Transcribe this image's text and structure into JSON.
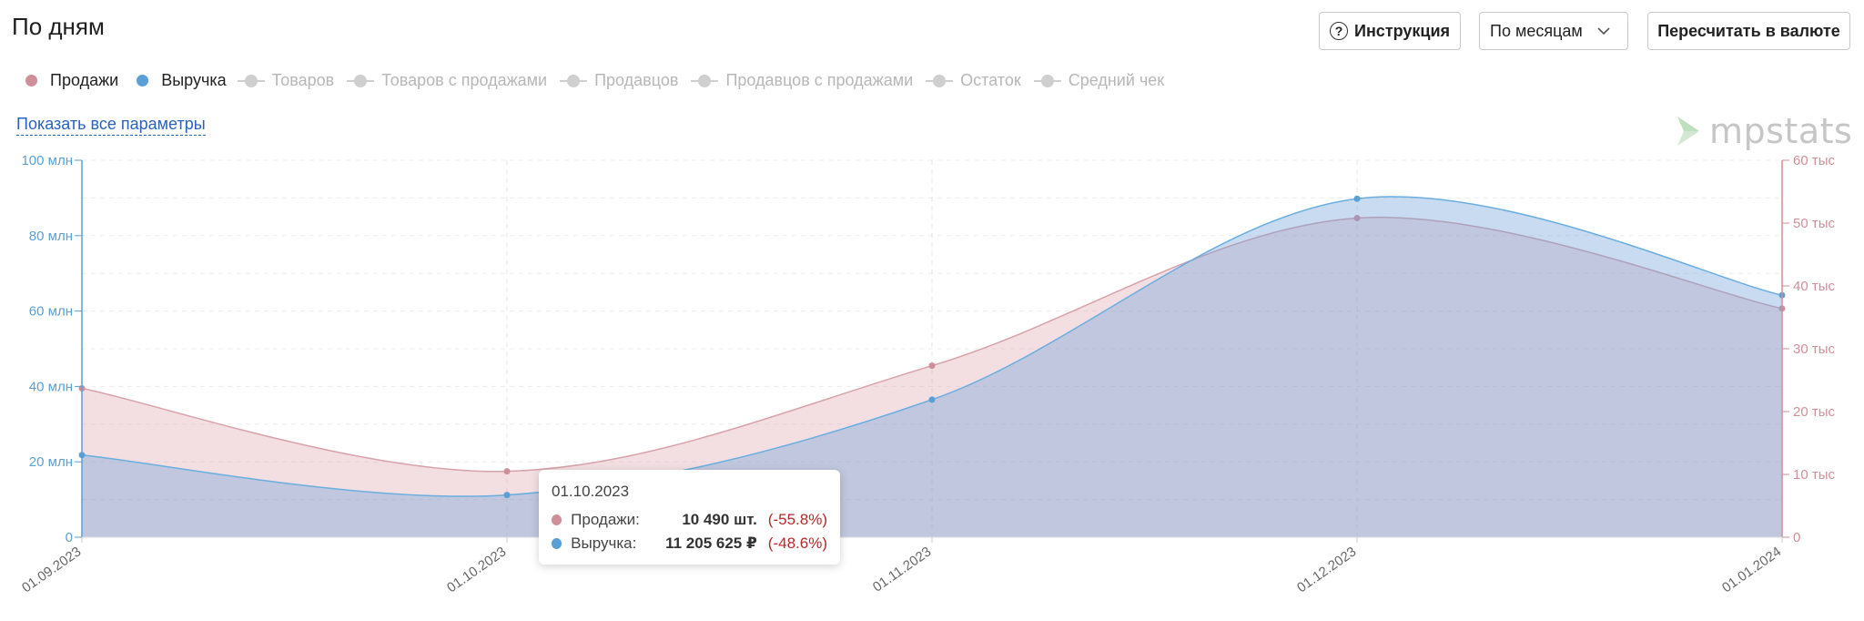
{
  "header": {
    "title": "По дням",
    "help_label": "Инструкция",
    "period_select": "По месяцам",
    "currency_label": "Пересчитать в валюте"
  },
  "legend": {
    "active": [
      {
        "label": "Продажи",
        "color": "#cf8f99"
      },
      {
        "label": "Выручка",
        "color": "#5aa0d6"
      }
    ],
    "inactive": [
      "Товаров",
      "Товаров с продажами",
      "Продавцов",
      "Продавцов с продажами",
      "Остаток",
      "Средний чек"
    ]
  },
  "show_all_link": "Показать все параметры",
  "logo": {
    "text": "mpstats",
    "icon": "mpstats-logo-icon"
  },
  "tooltip": {
    "date": "01.10.2023",
    "rows": [
      {
        "label": "Продажи:",
        "value": "10 490 шт.",
        "change": "(-55.8%)",
        "color": "#cf8f99"
      },
      {
        "label": "Выручка:",
        "value": "11 205 625 ₽",
        "change": "(-48.6%)",
        "color": "#5aa0d6"
      }
    ]
  },
  "chart_data": {
    "type": "area",
    "categories": [
      "01.09.2023",
      "01.10.2023",
      "01.11.2023",
      "01.12.2023",
      "01.01.2024"
    ],
    "series": [
      {
        "name": "Продажи",
        "axis": "right",
        "color": "#cf8f99",
        "values": [
          23700,
          10490,
          27300,
          50800,
          36400
        ]
      },
      {
        "name": "Выручка",
        "axis": "left",
        "color": "#5aa0d6",
        "values": [
          21800000,
          11205625,
          36500000,
          89800000,
          64200000
        ]
      }
    ],
    "y_left": {
      "min": 0,
      "max": 100000000,
      "ticks": [
        "0",
        "20 млн",
        "40 млн",
        "60 млн",
        "80 млн",
        "100 млн"
      ]
    },
    "y_right": {
      "min": 0,
      "max": 60000,
      "ticks": [
        "0",
        "10 тыс",
        "20 тыс",
        "30 тыс",
        "40 тыс",
        "50 тыс",
        "60 тыс"
      ]
    },
    "grid": true
  }
}
